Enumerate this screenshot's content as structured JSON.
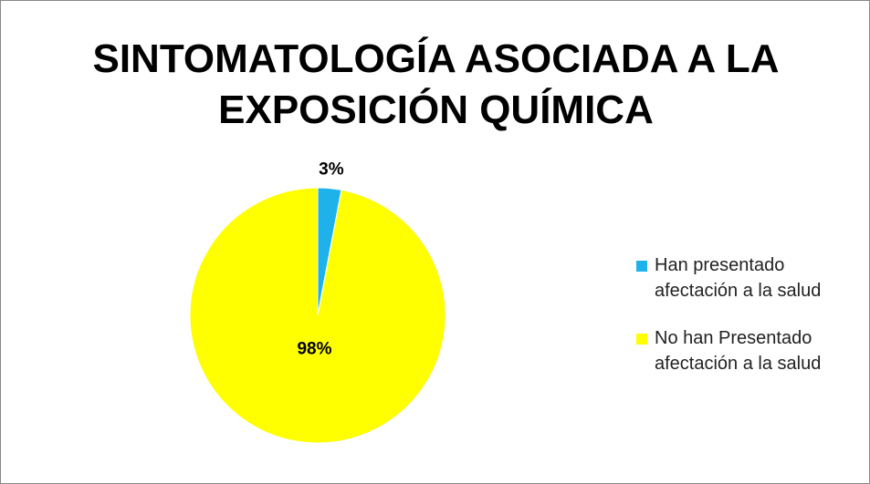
{
  "chart_data": {
    "type": "pie",
    "title": "SINTOMATOLOGÍA ASOCIADA A LA EXPOSICIÓN QUÍMICA",
    "categories": [
      "Han presentado afectación a la salud",
      "No han Presentado afectación a la salud"
    ],
    "values": [
      3,
      98
    ],
    "value_labels": [
      "3%",
      "98%"
    ],
    "colors": [
      "#1fb2ea",
      "#ffff00"
    ],
    "legend": "right"
  }
}
